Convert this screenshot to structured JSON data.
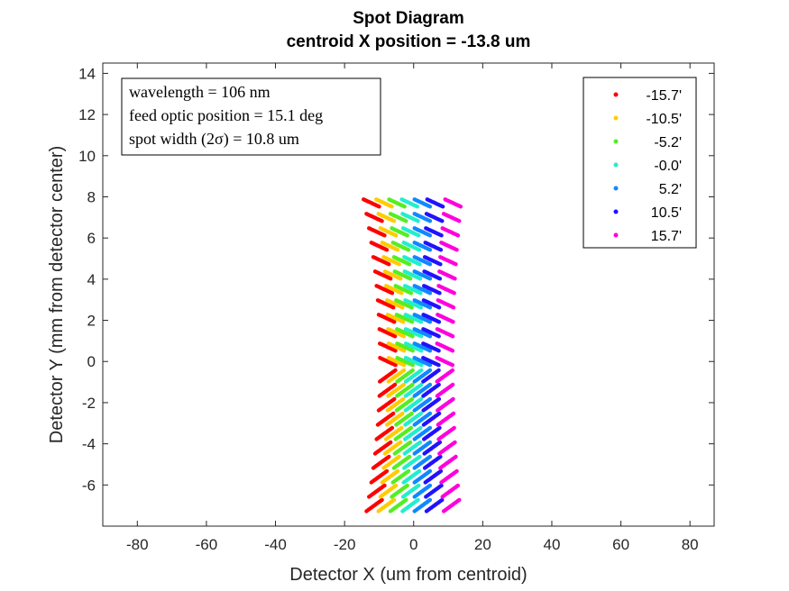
{
  "chart_data": {
    "type": "scatter",
    "title": "Spot Diagram",
    "subtitle": "centroid X position = -13.8 um",
    "xlabel": "Detector X (um from centroid)",
    "ylabel": "Detector Y (mm from detector center)",
    "xlim": [
      -90,
      87
    ],
    "ylim": [
      -8,
      14.5
    ],
    "xticks": [
      -80,
      -60,
      -40,
      -20,
      0,
      20,
      40,
      60,
      80
    ],
    "yticks": [
      -6,
      -4,
      -2,
      0,
      2,
      4,
      6,
      8,
      10,
      12,
      14
    ],
    "grid": false,
    "legend_position": "top-right",
    "annotation": {
      "lines": [
        "wavelength = 106 nm",
        "feed optic position = 15.1 deg",
        "spot width (2σ) = 10.8 um"
      ]
    },
    "spot_rows_y": [
      -7.0,
      -6.3,
      -5.6,
      -4.9,
      -4.2,
      -3.5,
      -2.8,
      -2.1,
      -1.4,
      -0.7,
      0.0,
      0.7,
      1.4,
      2.1,
      2.8,
      3.5,
      4.2,
      4.9,
      5.6,
      6.3,
      7.0,
      7.7
    ],
    "series": [
      {
        "name": "-15.7'",
        "color": "#ff0000",
        "x_offset": -7.5
      },
      {
        "name": "-10.5'",
        "color": "#ffcc00",
        "x_offset": -5.0
      },
      {
        "name": "-5.2'",
        "color": "#55ee22",
        "x_offset": -2.5
      },
      {
        "name": "-0.0'",
        "color": "#22eecc",
        "x_offset": 0.0
      },
      {
        "name": "5.2'",
        "color": "#1188ff",
        "x_offset": 2.5
      },
      {
        "name": "10.5'",
        "color": "#2211ff",
        "x_offset": 5.0
      },
      {
        "name": "15.7'",
        "color": "#ff00dd",
        "x_offset": 9.0
      }
    ]
  }
}
